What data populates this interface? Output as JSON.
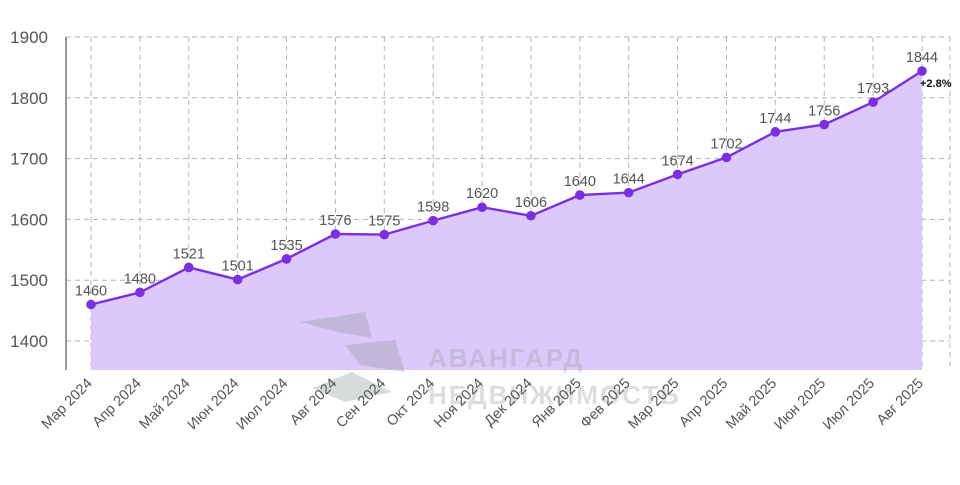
{
  "chart_data": {
    "type": "area",
    "categories": [
      "Мар 2024",
      "Апр 2024",
      "Май 2024",
      "Июн 2024",
      "Июл 2024",
      "Авг 2024",
      "Сен 2024",
      "Окт 2024",
      "Ноя 2024",
      "Дек 2024",
      "Янв 2025",
      "Фев 2025",
      "Мар 2025",
      "Апр 2025",
      "Май 2025",
      "Июн 2025",
      "Июл 2025",
      "Авг 2025"
    ],
    "values": [
      1460,
      1480,
      1521,
      1501,
      1535,
      1576,
      1575,
      1598,
      1620,
      1606,
      1640,
      1644,
      1674,
      1702,
      1744,
      1756,
      1793,
      1844
    ],
    "data_labels": [
      "1460",
      "1480",
      "1521",
      "1501",
      "1535",
      "1576",
      "1575",
      "1598",
      "1620",
      "1606",
      "1640",
      "1644",
      "1674",
      "1702",
      "1744",
      "1756",
      "1793",
      "1844"
    ],
    "yticks": [
      "1400",
      "1500",
      "1600",
      "1700",
      "1800",
      "1900"
    ],
    "ylim": [
      1350,
      1900
    ],
    "grid": true,
    "annotation": "+2.8%",
    "title": "",
    "xlabel": "",
    "ylabel": "",
    "colors": {
      "line": "#7b2fe0",
      "fill": "#dcc8fb",
      "marker": "#7b2fe0"
    }
  },
  "watermark": {
    "line1": "АВАНГАРД",
    "line2": "НЕДВИЖИМОСТЬ"
  }
}
